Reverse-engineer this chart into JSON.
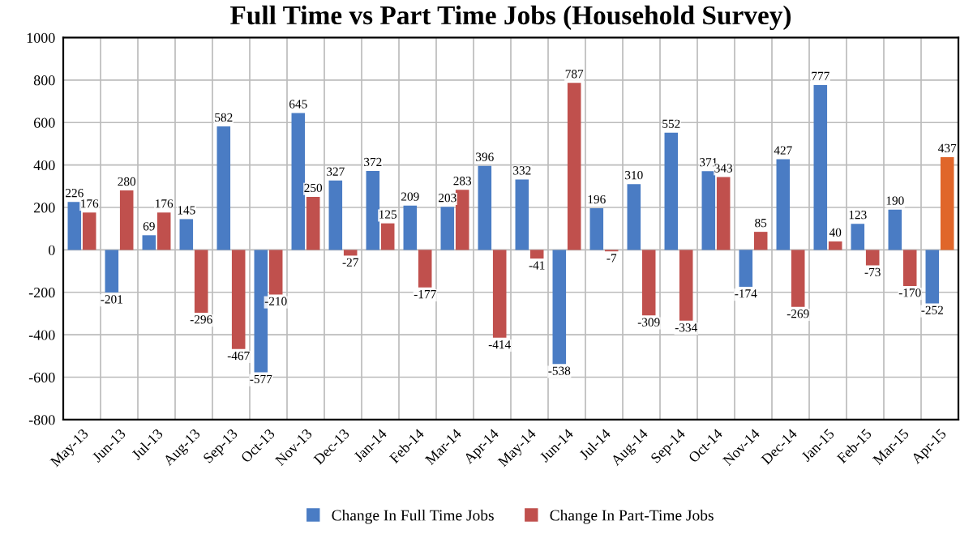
{
  "chart_data": {
    "type": "bar",
    "title": "Full Time vs Part Time Jobs (Household Survey)",
    "categories": [
      "May-13",
      "Jun-13",
      "Jul-13",
      "Aug-13",
      "Sep-13",
      "Oct-13",
      "Nov-13",
      "Dec-13",
      "Jan-14",
      "Feb-14",
      "Mar-14",
      "Apr-14",
      "May-14",
      "Jun-14",
      "Jul-14",
      "Aug-14",
      "Sep-14",
      "Oct-14",
      "Nov-14",
      "Dec-14",
      "Jan-15",
      "Feb-15",
      "Mar-15",
      "Apr-15"
    ],
    "series": [
      {
        "name": "Change In Full Time Jobs",
        "color": "#4a7cc4",
        "values": [
          226,
          -201,
          69,
          145,
          582,
          -577,
          645,
          327,
          372,
          209,
          203,
          396,
          332,
          -538,
          196,
          310,
          552,
          371,
          -174,
          427,
          777,
          123,
          190,
          -252
        ]
      },
      {
        "name": "Change In Part-Time Jobs",
        "color": "#c0504d",
        "colors": [
          "#c0504d",
          "#c0504d",
          "#c0504d",
          "#c0504d",
          "#c0504d",
          "#c0504d",
          "#c0504d",
          "#c0504d",
          "#c0504d",
          "#c0504d",
          "#c0504d",
          "#c0504d",
          "#c0504d",
          "#c0504d",
          "#c0504d",
          "#c0504d",
          "#c0504d",
          "#c0504d",
          "#c0504d",
          "#c0504d",
          "#c0504d",
          "#c0504d",
          "#c0504d",
          "#e0662a"
        ],
        "values": [
          176,
          280,
          176,
          -296,
          -467,
          -210,
          250,
          -27,
          125,
          -177,
          283,
          -414,
          -41,
          787,
          -7,
          -309,
          -334,
          343,
          85,
          -269,
          40,
          -73,
          -170,
          437
        ]
      }
    ],
    "ylim": [
      -800,
      1000
    ],
    "yticks": [
      -800,
      -600,
      -400,
      -200,
      0,
      200,
      400,
      600,
      800,
      1000
    ],
    "grid": true,
    "legend": "bottom",
    "data_labels": true
  }
}
